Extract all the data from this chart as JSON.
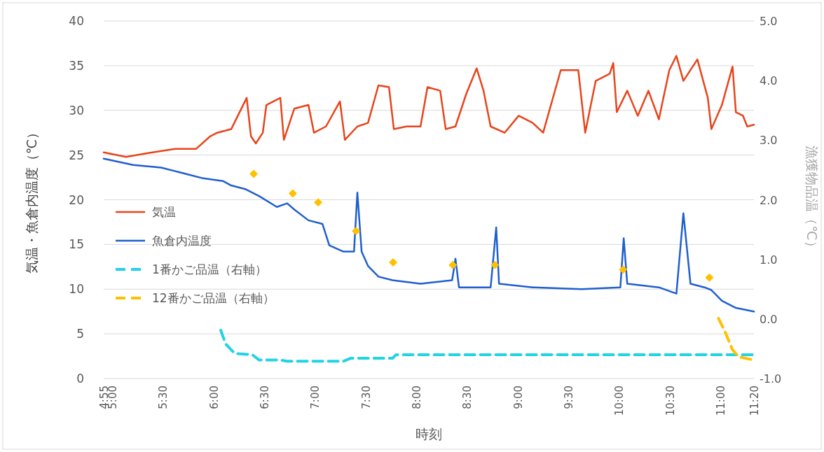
{
  "chart_data": {
    "type": "line",
    "xlabel": "時刻",
    "ylabel": "気温・魚倉内温度（℃）",
    "y2label": "漁獲物品温（℃）",
    "xlim": [
      4.917,
      11.333
    ],
    "xticks": [
      {
        "value": 4.917,
        "label": "4:55"
      },
      {
        "value": 5,
        "label": "5:00"
      },
      {
        "value": 5.5,
        "label": "5:30"
      },
      {
        "value": 6,
        "label": "6:00"
      },
      {
        "value": 6.5,
        "label": "6:30"
      },
      {
        "value": 7,
        "label": "7:00"
      },
      {
        "value": 7.5,
        "label": "7:30"
      },
      {
        "value": 8,
        "label": "8:00"
      },
      {
        "value": 8.5,
        "label": "8:30"
      },
      {
        "value": 9,
        "label": "9:00"
      },
      {
        "value": 9.5,
        "label": "9:30"
      },
      {
        "value": 10,
        "label": "10:00"
      },
      {
        "value": 10.5,
        "label": "10:30"
      },
      {
        "value": 11,
        "label": "11:00"
      },
      {
        "value": 11.333,
        "label": "11:20"
      }
    ],
    "ylim": [
      0,
      40
    ],
    "yticks": [
      0,
      5,
      10,
      15,
      20,
      25,
      30,
      35,
      40
    ],
    "y2lim": [
      -1,
      5
    ],
    "y2ticks": [
      {
        "value": -1,
        "label": "-1.0"
      },
      {
        "value": 0,
        "label": "0.0"
      },
      {
        "value": 1,
        "label": "1.0"
      },
      {
        "value": 2,
        "label": "2.0"
      },
      {
        "value": 3,
        "label": "3.0"
      },
      {
        "value": 4,
        "label": "4.0"
      },
      {
        "value": 5,
        "label": "5.0"
      }
    ],
    "grid": "y",
    "legend": "left",
    "series": [
      {
        "name": "気温",
        "color": "#e8441b",
        "line_style": "solid",
        "x": [
          4.917,
          5.138,
          5.345,
          5.622,
          5.83,
          5.968,
          6.037,
          6.175,
          6.328,
          6.37,
          6.418,
          6.487,
          6.522,
          6.66,
          6.695,
          6.798,
          6.937,
          6.992,
          7.11,
          7.248,
          7.297,
          7.42,
          7.525,
          7.628,
          7.732,
          7.78,
          7.905,
          8.043,
          8.112,
          8.237,
          8.292,
          8.388,
          8.493,
          8.597,
          8.665,
          8.735,
          8.873,
          9.012,
          9.15,
          9.253,
          9.427,
          9.6,
          9.668,
          9.772,
          9.91,
          9.945,
          9.98,
          10.083,
          10.187,
          10.292,
          10.395,
          10.498,
          10.568,
          10.637,
          10.775,
          10.878,
          10.913,
          11.017,
          11.122,
          11.155,
          11.225,
          11.267,
          11.333
        ],
        "values": [
          25.3,
          24.8,
          25.2,
          25.7,
          25.7,
          27.1,
          27.5,
          27.9,
          31.4,
          27.1,
          26.3,
          27.5,
          30.6,
          31.4,
          26.7,
          30.2,
          30.6,
          27.5,
          28.2,
          31.0,
          26.7,
          28.2,
          28.6,
          32.8,
          32.6,
          27.9,
          28.2,
          28.2,
          32.6,
          32.2,
          27.9,
          28.2,
          31.8,
          34.7,
          32.2,
          28.2,
          27.5,
          29.4,
          28.6,
          27.5,
          34.5,
          34.5,
          27.5,
          33.3,
          34.1,
          35.3,
          29.8,
          32.2,
          29.4,
          32.2,
          29.0,
          34.5,
          36.1,
          33.3,
          35.7,
          31.4,
          27.9,
          30.6,
          34.9,
          29.8,
          29.4,
          28.2,
          28.4
        ]
      },
      {
        "name": "魚倉内温度",
        "color": "#1f5fcf",
        "line_style": "solid",
        "x": [
          4.917,
          5.207,
          5.483,
          5.622,
          5.898,
          6.093,
          6.175,
          6.313,
          6.452,
          6.625,
          6.728,
          6.798,
          6.937,
          7.075,
          7.143,
          7.282,
          7.387,
          7.42,
          7.462,
          7.525,
          7.628,
          7.767,
          8.043,
          8.355,
          8.388,
          8.423,
          8.735,
          8.79,
          8.818,
          9.15,
          9.633,
          10.015,
          10.048,
          10.083,
          10.395,
          10.568,
          10.637,
          10.707,
          10.845,
          10.913,
          11.017,
          11.155,
          11.333
        ],
        "values": [
          24.6,
          23.9,
          23.6,
          23.2,
          22.4,
          22.1,
          21.6,
          21.2,
          20.4,
          19.2,
          19.6,
          18.9,
          17.7,
          17.3,
          14.9,
          14.2,
          14.2,
          20.8,
          14.2,
          12.6,
          11.4,
          11.0,
          10.6,
          11.0,
          13.4,
          10.2,
          10.2,
          16.9,
          10.6,
          10.2,
          10.0,
          10.2,
          15.7,
          10.6,
          10.2,
          9.5,
          18.5,
          10.6,
          10.2,
          9.9,
          8.7,
          7.9,
          7.5
        ]
      },
      {
        "name": "1番かご品温（右軸）",
        "color": "#22d3e6",
        "line_style": "dashed",
        "axis": "y2",
        "x": [
          6.072,
          6.12,
          6.21,
          6.383,
          6.452,
          6.66,
          6.728,
          7.282,
          7.352,
          7.767,
          7.802,
          11.333
        ],
        "values": [
          -0.19,
          -0.42,
          -0.58,
          -0.6,
          -0.69,
          -0.69,
          -0.71,
          -0.71,
          -0.66,
          -0.66,
          -0.6,
          -0.6
        ]
      },
      {
        "name": "12番かご品温（右軸）",
        "color": "#ffc000",
        "line_style": "dashed",
        "axis": "y2",
        "x": [
          10.983,
          11.052,
          11.122,
          11.19,
          11.333
        ],
        "values": [
          0.01,
          -0.23,
          -0.52,
          -0.64,
          -0.69
        ]
      },
      {
        "type": "scatter",
        "marker": "diamond",
        "color": "#ffc000",
        "x": [
          6.397,
          6.783,
          7.033,
          7.407,
          7.773,
          8.362,
          8.777,
          10.042,
          10.893
        ],
        "values": [
          22.9,
          20.7,
          19.7,
          16.5,
          13.0,
          12.7,
          12.7,
          12.2,
          11.3
        ]
      }
    ]
  }
}
